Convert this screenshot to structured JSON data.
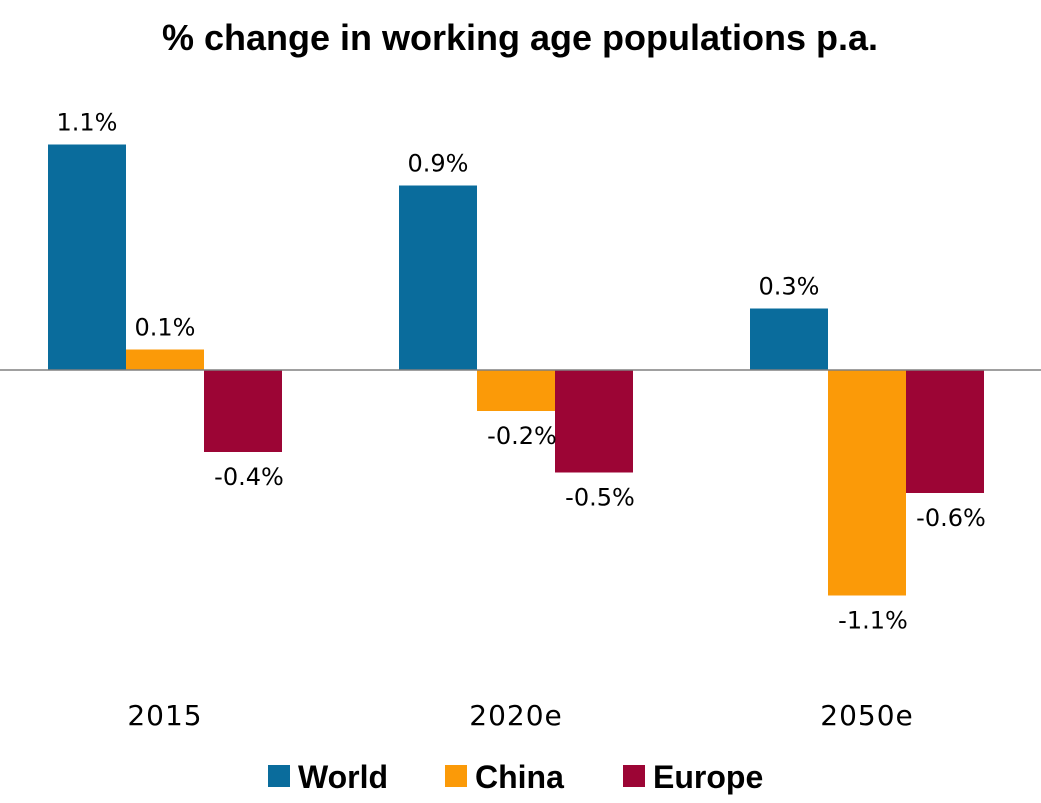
{
  "chart_data": {
    "type": "bar",
    "title": "% change in working age populations p.a.",
    "xlabel": "",
    "ylabel": "",
    "unit": "%",
    "categories": [
      "2015",
      "2020e",
      "2050e"
    ],
    "series": [
      {
        "name": "World",
        "color": "#0a6c9c",
        "values": [
          1.1,
          0.9,
          0.3
        ],
        "labels": [
          "1.1%",
          "0.9%",
          "0.3%"
        ]
      },
      {
        "name": "China",
        "color": "#fb9a08",
        "values": [
          0.1,
          -0.2,
          -1.1
        ],
        "labels": [
          "0.1%",
          "-0.2%",
          "-1.1%"
        ]
      },
      {
        "name": "Europe",
        "color": "#9c0535",
        "values": [
          -0.4,
          -0.5,
          -0.6
        ],
        "labels": [
          "-0.4%",
          "-0.5%",
          "-0.6%"
        ]
      }
    ],
    "ylim": [
      -1.3,
      1.3
    ],
    "grid": false,
    "legend": "bottom",
    "zero_line_color": "#808080"
  }
}
